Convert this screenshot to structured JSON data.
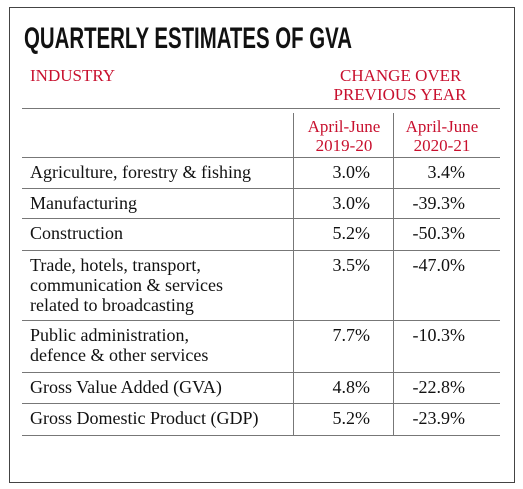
{
  "title": "QUARTERLY ESTIMATES OF GVA",
  "header": {
    "industry": "INDUSTRY",
    "change": [
      "CHANGE OVER",
      "PREVIOUS YEAR"
    ],
    "columns": [
      [
        "April-June",
        "2019-20"
      ],
      [
        "April-June",
        "2020-21"
      ]
    ]
  },
  "rows": [
    {
      "label": [
        "Agriculture, forestry & fishing"
      ],
      "values": [
        "3.0%",
        "3.4%"
      ]
    },
    {
      "label": [
        "Manufacturing"
      ],
      "values": [
        "3.0%",
        "-39.3%"
      ]
    },
    {
      "label": [
        "Construction"
      ],
      "values": [
        "5.2%",
        "-50.3%"
      ]
    },
    {
      "label": [
        "Trade, hotels, transport,",
        "communication & services",
        "related to broadcasting"
      ],
      "values": [
        "3.5%",
        "-47.0%"
      ]
    },
    {
      "label": [
        "Public administration,",
        "defence & other services"
      ],
      "values": [
        "7.7%",
        "-10.3%"
      ]
    },
    {
      "label": [
        "Gross Value Added (GVA)"
      ],
      "values": [
        "4.8%",
        "-22.8%"
      ]
    },
    {
      "label": [
        "Gross Domestic Product (GDP)"
      ],
      "values": [
        "5.2%",
        "-23.9%"
      ]
    }
  ]
}
